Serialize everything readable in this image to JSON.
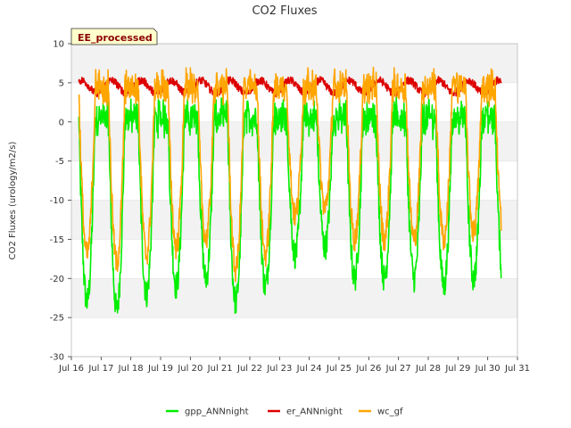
{
  "chart_data": {
    "type": "line",
    "title": "CO2 Fluxes",
    "ylabel": "CO2 Fluxes (urology/m2/s)",
    "xlabel": "",
    "badge": "EE_processed",
    "ylim": [
      -30,
      10
    ],
    "yticks": [
      10,
      5,
      0,
      -5,
      -10,
      -15,
      -20,
      -25,
      -30
    ],
    "xlim": [
      16,
      31
    ],
    "xticks": [
      {
        "v": 16,
        "label": "Jul 16"
      },
      {
        "v": 17,
        "label": "Jul 17"
      },
      {
        "v": 18,
        "label": "Jul 18"
      },
      {
        "v": 19,
        "label": "Jul 19"
      },
      {
        "v": 20,
        "label": "Jul 20"
      },
      {
        "v": 21,
        "label": "Jul 21"
      },
      {
        "v": 22,
        "label": "Jul 22"
      },
      {
        "v": 23,
        "label": "Jul 23"
      },
      {
        "v": 24,
        "label": "Jul 24"
      },
      {
        "v": 25,
        "label": "Jul 25"
      },
      {
        "v": 26,
        "label": "Jul 26"
      },
      {
        "v": 27,
        "label": "Jul 27"
      },
      {
        "v": 28,
        "label": "Jul 28"
      },
      {
        "v": 29,
        "label": "Jul 29"
      },
      {
        "v": 30,
        "label": "Jul 30"
      },
      {
        "v": 31,
        "label": "Jul 31"
      }
    ],
    "x_start": 16.25,
    "x_end": 30.45,
    "series": [
      {
        "name": "gpp_ANNnight",
        "color": "#00ee00",
        "day_min": -1,
        "night_value": 0.5,
        "day_peaks": [
          -23,
          -24,
          -22,
          -21,
          -20,
          -23,
          -21,
          -17,
          -16,
          -20,
          -20,
          -20,
          -21,
          -20
        ]
      },
      {
        "name": "er_ANNnight",
        "color": "#dd0000",
        "mean": 4.5,
        "amplitude": 0.8
      },
      {
        "name": "wc_gf",
        "color": "#ffa500",
        "night_value": 4.5,
        "day_peaks": [
          -17,
          -18,
          -17,
          -16,
          -15,
          -19,
          -17,
          -12,
          -11,
          -15,
          -15,
          -15,
          -15,
          -14
        ]
      }
    ]
  }
}
